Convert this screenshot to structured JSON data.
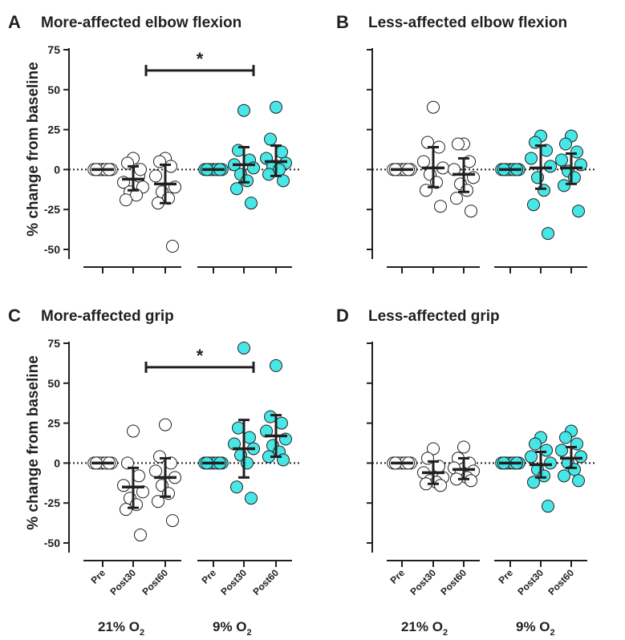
{
  "colors": {
    "ink": "#231f20",
    "normoxia_fill": "#ffffff",
    "hypoxia_fill": "#3ee6e6",
    "marker_edge": "#231f20"
  },
  "ylabel": "% change from baseline",
  "groups": [
    {
      "label": "21% O",
      "sub": "2"
    },
    {
      "label": "9% O",
      "sub": "2"
    }
  ],
  "chart_data": [
    {
      "type": "scatter",
      "letter": "A",
      "title": "More-affected elbow flexion",
      "xlabel": "",
      "ylabel": "% change from baseline",
      "ylim": [
        -55,
        75
      ],
      "yticks": [
        75,
        50,
        25,
        0,
        -25,
        -50
      ],
      "show_yticklabels": true,
      "show_xticklabels": false,
      "reference_line": 0,
      "categories": [
        "Pre",
        "Post30",
        "Post60",
        "Pre",
        "Post30",
        "Post60"
      ],
      "conditions": [
        "21% O2",
        "21% O2",
        "21% O2",
        "9% O2",
        "9% O2",
        "9% O2"
      ],
      "means": [
        0,
        -6,
        -9,
        0,
        3,
        5
      ],
      "sd_low": [
        0,
        -13,
        -21,
        0,
        -8,
        -4
      ],
      "sd_high": [
        0,
        2,
        3,
        0,
        14,
        15
      ],
      "points": [
        [
          0,
          0,
          0,
          0,
          0,
          0,
          0,
          0,
          0
        ],
        [
          7,
          4,
          -4,
          -8,
          -11,
          -14,
          -16,
          -19,
          0
        ],
        [
          7,
          5,
          2,
          -4,
          -11,
          -14,
          -18,
          -21,
          -48
        ],
        [
          0,
          0,
          0,
          0,
          0,
          0,
          0,
          0,
          0
        ],
        [
          37,
          12,
          6,
          3,
          1,
          -3,
          -7,
          -12,
          -21
        ],
        [
          39,
          19,
          11,
          7,
          4,
          2,
          0,
          -3,
          -7
        ]
      ],
      "significance": {
        "from": 1,
        "to": 4,
        "label": "*",
        "y": 62
      }
    },
    {
      "type": "scatter",
      "letter": "B",
      "title": "Less-affected elbow flexion",
      "xlabel": "",
      "ylabel": "",
      "ylim": [
        -55,
        75
      ],
      "yticks": [
        75,
        50,
        25,
        0,
        -25,
        -50
      ],
      "show_yticklabels": false,
      "show_xticklabels": false,
      "reference_line": 0,
      "categories": [
        "Pre",
        "Post30",
        "Post60",
        "Pre",
        "Post30",
        "Post60"
      ],
      "conditions": [
        "21% O2",
        "21% O2",
        "21% O2",
        "9% O2",
        "9% O2",
        "9% O2"
      ],
      "means": [
        0,
        1,
        -3,
        0,
        1,
        1
      ],
      "sd_low": [
        0,
        -11,
        -14,
        0,
        -12,
        -9
      ],
      "sd_high": [
        0,
        14,
        7,
        0,
        15,
        10
      ],
      "points": [
        [
          0,
          0,
          0,
          0,
          0,
          0,
          0,
          0,
          0
        ],
        [
          39,
          17,
          14,
          5,
          1,
          -3,
          -8,
          -13,
          -23
        ],
        [
          16,
          16,
          5,
          0,
          -5,
          -9,
          -13,
          -18,
          -26
        ],
        [
          0,
          0,
          0,
          0,
          0,
          0,
          0,
          0,
          0
        ],
        [
          21,
          17,
          12,
          7,
          2,
          -5,
          -13,
          -22,
          -40
        ],
        [
          21,
          16,
          11,
          6,
          3,
          -1,
          -5,
          -10,
          -26
        ]
      ],
      "significance": null
    },
    {
      "type": "scatter",
      "letter": "C",
      "title": "More-affected grip",
      "xlabel": "",
      "ylabel": "% change from baseline",
      "ylim": [
        -55,
        75
      ],
      "yticks": [
        75,
        50,
        25,
        0,
        -25,
        -50
      ],
      "show_yticklabels": true,
      "show_xticklabels": true,
      "reference_line": 0,
      "categories": [
        "Pre",
        "Post30",
        "Post60",
        "Pre",
        "Post30",
        "Post60"
      ],
      "conditions": [
        "21% O2",
        "21% O2",
        "21% O2",
        "9% O2",
        "9% O2",
        "9% O2"
      ],
      "means": [
        0,
        -15,
        -9,
        0,
        9,
        17
      ],
      "sd_low": [
        0,
        -28,
        -21,
        0,
        -9,
        4
      ],
      "sd_high": [
        0,
        -3,
        3,
        0,
        27,
        30
      ],
      "points": [
        [
          0,
          0,
          0,
          0,
          0,
          0,
          0,
          0,
          0
        ],
        [
          20,
          0,
          -8,
          -14,
          -18,
          -22,
          -26,
          -29,
          -45
        ],
        [
          24,
          4,
          0,
          -5,
          -9,
          -14,
          -19,
          -24,
          -36
        ],
        [
          0,
          0,
          0,
          0,
          0,
          0,
          0,
          0,
          0
        ],
        [
          72,
          22,
          16,
          12,
          9,
          5,
          0,
          -15,
          -22
        ],
        [
          61,
          29,
          25,
          20,
          15,
          11,
          7,
          4,
          2
        ]
      ],
      "significance": {
        "from": 1,
        "to": 4,
        "label": "*",
        "y": 60
      }
    },
    {
      "type": "scatter",
      "letter": "D",
      "title": "Less-affected grip",
      "xlabel": "",
      "ylabel": "",
      "ylim": [
        -55,
        75
      ],
      "yticks": [
        75,
        50,
        25,
        0,
        -25,
        -50
      ],
      "show_yticklabels": false,
      "show_xticklabels": true,
      "reference_line": 0,
      "categories": [
        "Pre",
        "Post30",
        "Post60",
        "Pre",
        "Post30",
        "Post60"
      ],
      "conditions": [
        "21% O2",
        "21% O2",
        "21% O2",
        "9% O2",
        "9% O2",
        "9% O2"
      ],
      "means": [
        0,
        -6,
        -4,
        0,
        -1,
        3
      ],
      "sd_low": [
        0,
        -13,
        -10,
        0,
        -9,
        -3
      ],
      "sd_high": [
        0,
        1,
        3,
        0,
        7,
        10
      ],
      "points": [
        [
          0,
          0,
          0,
          0,
          0,
          0,
          0,
          0,
          0
        ],
        [
          9,
          3,
          -2,
          -6,
          -9,
          -11,
          -12,
          -13,
          -14
        ],
        [
          10,
          3,
          0,
          -3,
          -5,
          -7,
          -9,
          -10,
          -11
        ],
        [
          0,
          0,
          0,
          0,
          0,
          0,
          0,
          0,
          0
        ],
        [
          16,
          12,
          8,
          4,
          0,
          -4,
          -8,
          -12,
          -27
        ],
        [
          20,
          16,
          12,
          8,
          4,
          0,
          -4,
          -8,
          -11
        ]
      ],
      "significance": null
    }
  ]
}
